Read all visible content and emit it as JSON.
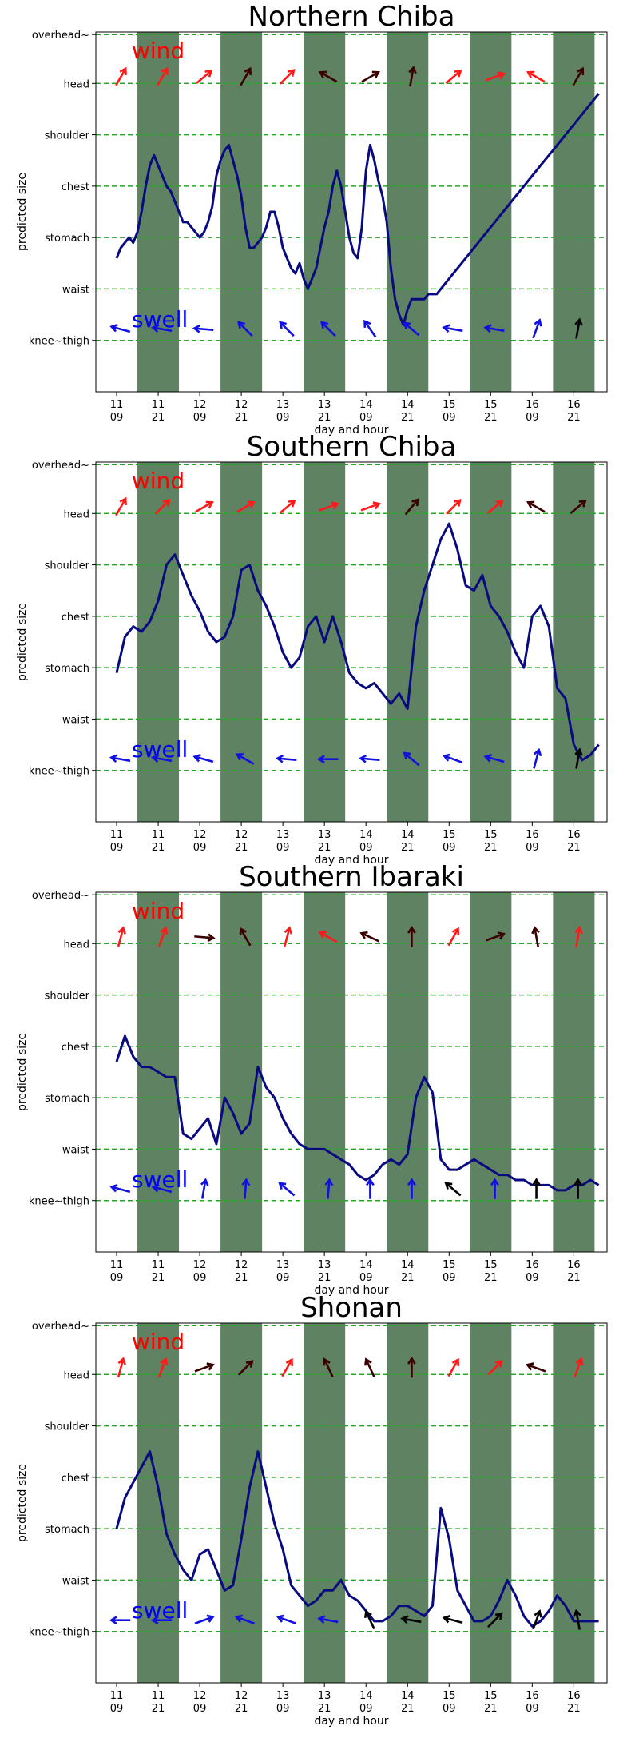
{
  "colors": {
    "night_band": "#5e8262",
    "grid": "#22aa22",
    "line": "#0a0a80",
    "wind_label": "#ff0000",
    "swell_label": "#0000ff",
    "arrow_red": "#ff1a1a",
    "arrow_dark": "#3a0000",
    "arrow_blue": "#1010e0",
    "arrow_black": "#000000"
  },
  "chart_data": [
    {
      "type": "line",
      "title": "Northern Chiba",
      "xlabel": "day and hour",
      "ylabel": "predicted size",
      "x_ticks": [
        "11\n09",
        "11\n21",
        "12\n09",
        "12\n21",
        "13\n09",
        "13\n21",
        "14\n09",
        "14\n21",
        "15\n09",
        "15\n21",
        "16\n09",
        "16\n21"
      ],
      "y_ticks": [
        "overhead~",
        "head",
        "shoulder",
        "chest",
        "stomach",
        "waist",
        "knee~thigh"
      ],
      "xlim": [
        10.75,
        16.9
      ],
      "ylim": [
        -1,
        6
      ],
      "grid": true,
      "annotations": [
        "wind",
        "swell"
      ],
      "night_bands": [
        [
          11.25,
          11.75
        ],
        [
          12.25,
          12.75
        ],
        [
          13.25,
          13.75
        ],
        [
          14.25,
          14.75
        ],
        [
          15.25,
          15.75
        ],
        [
          16.25,
          16.75
        ]
      ],
      "series": [
        {
          "x": [
            11.0,
            11.05,
            11.1,
            11.15,
            11.2,
            11.25,
            11.3,
            11.35,
            11.4,
            11.45,
            11.5,
            11.55,
            11.6,
            11.65,
            11.7,
            11.75,
            11.8,
            11.85,
            11.9,
            11.95,
            12.0,
            12.05,
            12.1,
            12.15,
            12.2,
            12.25,
            12.3,
            12.35,
            12.4,
            12.45,
            12.5,
            12.55,
            12.6,
            12.65,
            12.7,
            12.75,
            12.8,
            12.85,
            12.9,
            12.95,
            13.0,
            13.05,
            13.1,
            13.15,
            13.2,
            13.25,
            13.3,
            13.35,
            13.4,
            13.45,
            13.5,
            13.55,
            13.6,
            13.65,
            13.7,
            13.75,
            13.8,
            13.85,
            13.9,
            13.95,
            14.0,
            14.05,
            14.1,
            14.15,
            14.2,
            14.25,
            14.3,
            14.35,
            14.4,
            14.45,
            14.5,
            14.55,
            14.6,
            14.65,
            14.7,
            14.75,
            14.8,
            14.85,
            14.9,
            14.95,
            15.0,
            15.05,
            15.1,
            15.15,
            15.2,
            15.25,
            15.3,
            15.35,
            15.4,
            15.45,
            15.5,
            15.55,
            15.6,
            15.65,
            15.7,
            15.75,
            15.8,
            15.85,
            15.9,
            15.95,
            16.0,
            16.05,
            16.1,
            16.15,
            16.2,
            16.25,
            16.3,
            16.35,
            16.4,
            16.45,
            16.5,
            16.55,
            16.6,
            16.65,
            16.7,
            16.75,
            16.8
          ],
          "values": [
            1.6,
            1.8,
            1.9,
            2.0,
            1.9,
            2.1,
            2.5,
            3.0,
            3.4,
            3.6,
            3.4,
            3.2,
            3.0,
            2.9,
            2.7,
            2.5,
            2.3,
            2.3,
            2.2,
            2.1,
            2.0,
            2.1,
            2.3,
            2.6,
            3.2,
            3.5,
            3.7,
            3.8,
            3.5,
            3.2,
            2.8,
            2.2,
            1.8,
            1.8,
            1.9,
            2.0,
            2.2,
            2.5,
            2.5,
            2.2,
            1.8,
            1.6,
            1.4,
            1.3,
            1.5,
            1.2,
            1.0,
            1.2,
            1.4,
            1.8,
            2.2,
            2.5,
            3.0,
            3.3,
            3.0,
            2.5,
            2.0,
            1.7,
            1.6,
            2.2,
            3.3,
            3.8,
            3.5,
            3.1,
            2.8,
            2.3,
            1.4,
            0.8,
            0.5,
            0.3,
            0.6,
            0.8,
            0.8,
            0.8,
            0.8,
            0.9,
            0.9,
            0.9,
            1.0,
            1.1,
            1.2,
            1.3,
            1.4,
            1.5,
            1.6,
            1.7,
            1.8,
            1.9,
            2.0,
            2.1,
            2.2,
            2.3,
            2.4,
            2.5,
            2.6,
            2.7,
            2.8,
            2.9,
            3.0,
            3.1,
            3.2,
            3.3,
            3.4,
            3.5,
            3.6,
            3.7,
            3.8,
            3.9,
            4.0,
            4.1,
            4.2,
            4.3,
            4.4,
            4.5,
            4.6,
            4.7,
            4.8
          ]
        }
      ]
    },
    {
      "type": "line",
      "title": "Southern Chiba",
      "xlabel": "day and hour",
      "ylabel": "predicted size",
      "x_ticks": [
        "11\n09",
        "11\n21",
        "12\n09",
        "12\n21",
        "13\n09",
        "13\n21",
        "14\n09",
        "14\n21",
        "15\n09",
        "15\n21",
        "16\n09",
        "16\n21"
      ],
      "y_ticks": [
        "overhead~",
        "head",
        "shoulder",
        "chest",
        "stomach",
        "waist",
        "knee~thigh"
      ],
      "xlim": [
        10.75,
        16.9
      ],
      "ylim": [
        -1,
        6
      ],
      "grid": true,
      "annotations": [
        "wind",
        "swell"
      ],
      "night_bands": [
        [
          11.25,
          11.75
        ],
        [
          12.25,
          12.75
        ],
        [
          13.25,
          13.75
        ],
        [
          14.25,
          14.75
        ],
        [
          15.25,
          15.75
        ],
        [
          16.25,
          16.75
        ]
      ],
      "series": [
        {
          "x": [
            11.0,
            11.1,
            11.2,
            11.3,
            11.4,
            11.5,
            11.6,
            11.7,
            11.8,
            11.9,
            12.0,
            12.1,
            12.2,
            12.3,
            12.4,
            12.5,
            12.6,
            12.7,
            12.8,
            12.9,
            13.0,
            13.1,
            13.2,
            13.3,
            13.4,
            13.5,
            13.6,
            13.7,
            13.8,
            13.9,
            14.0,
            14.1,
            14.2,
            14.3,
            14.4,
            14.5,
            14.6,
            14.7,
            14.8,
            14.9,
            15.0,
            15.1,
            15.2,
            15.3,
            15.4,
            15.5,
            15.6,
            15.7,
            15.8,
            15.9,
            16.0,
            16.1,
            16.2,
            16.3,
            16.4,
            16.5,
            16.6,
            16.7,
            16.8
          ],
          "values": [
            1.9,
            2.6,
            2.8,
            2.7,
            2.9,
            3.3,
            4.0,
            4.2,
            3.8,
            3.4,
            3.1,
            2.7,
            2.5,
            2.6,
            3.0,
            3.9,
            4.0,
            3.5,
            3.2,
            2.8,
            2.3,
            2.0,
            2.2,
            2.8,
            3.0,
            2.5,
            3.0,
            2.5,
            1.9,
            1.7,
            1.6,
            1.7,
            1.5,
            1.3,
            1.5,
            1.2,
            2.8,
            3.5,
            4.0,
            4.5,
            4.8,
            4.3,
            3.6,
            3.5,
            3.8,
            3.2,
            3.0,
            2.7,
            2.3,
            2.0,
            3.0,
            3.2,
            2.8,
            1.6,
            1.4,
            0.5,
            0.2,
            0.3,
            0.5
          ]
        }
      ]
    },
    {
      "type": "line",
      "title": "Southern Ibaraki",
      "xlabel": "day and hour",
      "ylabel": "predicted size",
      "x_ticks": [
        "11\n09",
        "11\n21",
        "12\n09",
        "12\n21",
        "13\n09",
        "13\n21",
        "14\n09",
        "14\n21",
        "15\n09",
        "15\n21",
        "16\n09",
        "16\n21"
      ],
      "y_ticks": [
        "overhead~",
        "head",
        "shoulder",
        "chest",
        "stomach",
        "waist",
        "knee~thigh"
      ],
      "xlim": [
        10.75,
        16.9
      ],
      "ylim": [
        -1,
        6
      ],
      "grid": true,
      "annotations": [
        "wind",
        "swell"
      ],
      "night_bands": [
        [
          11.25,
          11.75
        ],
        [
          12.25,
          12.75
        ],
        [
          13.25,
          13.75
        ],
        [
          14.25,
          14.75
        ],
        [
          15.25,
          15.75
        ],
        [
          16.25,
          16.75
        ]
      ],
      "series": [
        {
          "x": [
            11.0,
            11.1,
            11.2,
            11.3,
            11.4,
            11.5,
            11.6,
            11.7,
            11.8,
            11.9,
            12.0,
            12.1,
            12.2,
            12.3,
            12.4,
            12.5,
            12.6,
            12.7,
            12.8,
            12.9,
            13.0,
            13.1,
            13.2,
            13.3,
            13.4,
            13.5,
            13.6,
            13.7,
            13.8,
            13.9,
            14.0,
            14.1,
            14.2,
            14.3,
            14.4,
            14.5,
            14.6,
            14.7,
            14.8,
            14.9,
            15.0,
            15.1,
            15.2,
            15.3,
            15.4,
            15.5,
            15.6,
            15.7,
            15.8,
            15.9,
            16.0,
            16.1,
            16.2,
            16.3,
            16.4,
            16.5,
            16.6,
            16.7,
            16.8
          ],
          "values": [
            2.7,
            3.2,
            2.8,
            2.6,
            2.6,
            2.5,
            2.4,
            2.4,
            1.3,
            1.2,
            1.4,
            1.6,
            1.1,
            2.0,
            1.7,
            1.3,
            1.5,
            2.6,
            2.2,
            2.0,
            1.6,
            1.3,
            1.1,
            1.0,
            1.0,
            1.0,
            0.9,
            0.8,
            0.7,
            0.5,
            0.4,
            0.5,
            0.7,
            0.8,
            0.7,
            0.9,
            2.0,
            2.4,
            2.1,
            0.8,
            0.6,
            0.6,
            0.7,
            0.8,
            0.7,
            0.6,
            0.5,
            0.5,
            0.4,
            0.4,
            0.3,
            0.3,
            0.3,
            0.2,
            0.2,
            0.3,
            0.3,
            0.4,
            0.3
          ]
        }
      ]
    },
    {
      "type": "line",
      "title": "Shonan",
      "xlabel": "day and hour",
      "ylabel": "predicted size",
      "x_ticks": [
        "11\n09",
        "11\n21",
        "12\n09",
        "12\n21",
        "13\n09",
        "13\n21",
        "14\n09",
        "14\n21",
        "15\n09",
        "15\n21",
        "16\n09",
        "16\n21"
      ],
      "y_ticks": [
        "overhead~",
        "head",
        "shoulder",
        "chest",
        "stomach",
        "waist",
        "knee~thigh"
      ],
      "xlim": [
        10.75,
        16.9
      ],
      "ylim": [
        -1,
        6
      ],
      "grid": true,
      "annotations": [
        "wind",
        "swell"
      ],
      "night_bands": [
        [
          11.25,
          11.75
        ],
        [
          12.25,
          12.75
        ],
        [
          13.25,
          13.75
        ],
        [
          14.25,
          14.75
        ],
        [
          15.25,
          15.75
        ],
        [
          16.25,
          16.75
        ]
      ],
      "series": [
        {
          "x": [
            11.0,
            11.1,
            11.2,
            11.3,
            11.4,
            11.5,
            11.6,
            11.7,
            11.8,
            11.9,
            12.0,
            12.1,
            12.2,
            12.3,
            12.4,
            12.5,
            12.6,
            12.7,
            12.8,
            12.9,
            13.0,
            13.1,
            13.2,
            13.3,
            13.4,
            13.5,
            13.6,
            13.7,
            13.8,
            13.9,
            14.0,
            14.1,
            14.2,
            14.3,
            14.4,
            14.5,
            14.6,
            14.7,
            14.8,
            14.9,
            15.0,
            15.1,
            15.2,
            15.3,
            15.4,
            15.5,
            15.6,
            15.7,
            15.8,
            15.9,
            16.0,
            16.1,
            16.2,
            16.3,
            16.4,
            16.5,
            16.6,
            16.7,
            16.8
          ],
          "values": [
            2.0,
            2.6,
            2.9,
            3.2,
            3.5,
            2.8,
            1.9,
            1.5,
            1.2,
            1.0,
            1.5,
            1.6,
            1.2,
            0.8,
            0.9,
            1.8,
            2.8,
            3.5,
            2.8,
            2.1,
            1.6,
            0.9,
            0.7,
            0.5,
            0.6,
            0.8,
            0.8,
            1.0,
            0.7,
            0.6,
            0.4,
            0.2,
            0.2,
            0.3,
            0.5,
            0.5,
            0.4,
            0.3,
            0.5,
            2.4,
            1.8,
            0.8,
            0.5,
            0.2,
            0.2,
            0.3,
            0.6,
            1.0,
            0.7,
            0.3,
            0.1,
            0.2,
            0.4,
            0.7,
            0.5,
            0.2,
            0.2,
            0.2,
            0.2
          ]
        }
      ]
    }
  ]
}
